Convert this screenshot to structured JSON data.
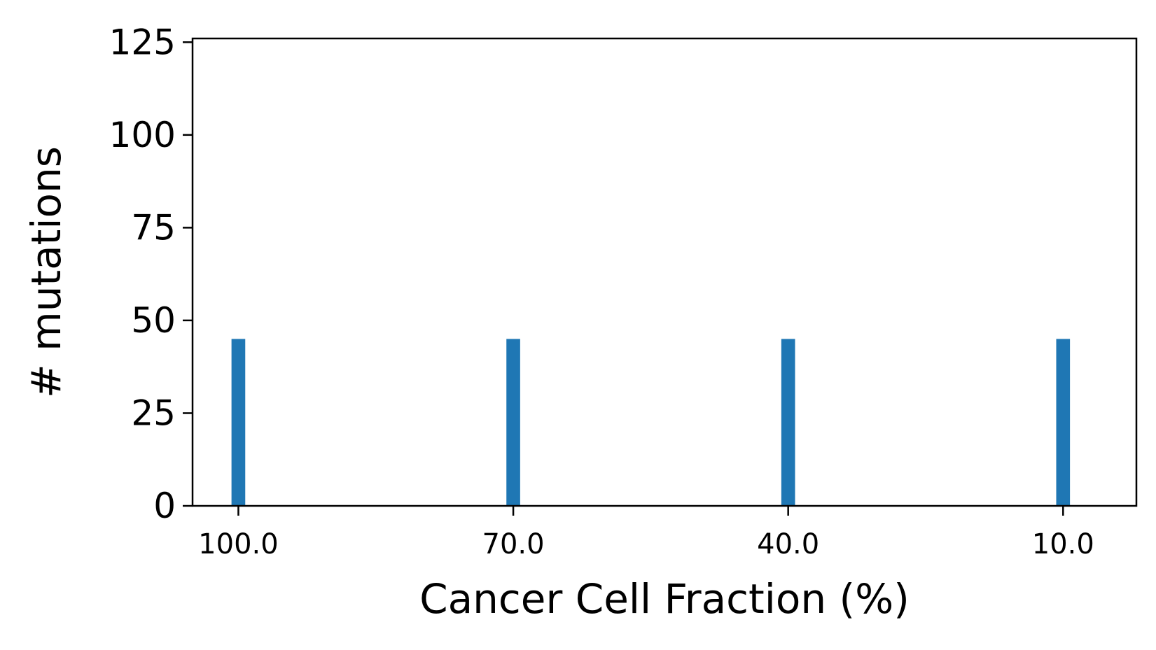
{
  "chart_data": {
    "type": "bar",
    "title": "",
    "xlabel": "Cancer Cell Fraction (%)",
    "ylabel": "# mutations",
    "x_reversed": true,
    "xlim": [
      105,
      2
    ],
    "ylim": [
      0,
      126
    ],
    "x_ticks": [
      100.0,
      70.0,
      40.0,
      10.0
    ],
    "x_tick_labels": [
      "100.0",
      "70.0",
      "40.0",
      "10.0"
    ],
    "y_ticks": [
      0,
      25,
      50,
      75,
      100,
      125
    ],
    "y_tick_labels": [
      "0",
      "25",
      "50",
      "75",
      "100",
      "125"
    ],
    "bar_width": 1.5,
    "x": [
      100.0,
      70.0,
      40.0,
      10.0
    ],
    "values": [
      45,
      45,
      45,
      45
    ],
    "bar_color": "#1f77b4",
    "grid": false,
    "legend": "none"
  }
}
